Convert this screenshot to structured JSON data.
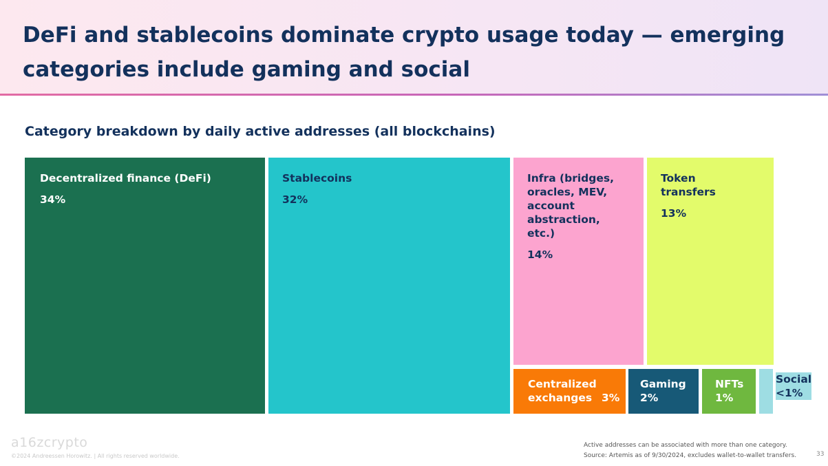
{
  "slide": {
    "title": "DeFi and stablecoins dominate crypto usage today — emerging categories include gaming and social",
    "footnote_line1": "Active addresses can be associated with more than one category.",
    "footnote_line2": "Source: Artemis as of 9/30/2024, excludes wallet-to-wallet transfers.",
    "logo": "a16zcrypto",
    "copyright": "©2024 Andreessen Horowitz. | All rights reserved worldwide.",
    "page_number": "33"
  },
  "chart_data": {
    "type": "treemap",
    "title": "Category breakdown by daily active addresses (all blockchains)",
    "unit": "% of daily active addresses",
    "items": [
      {
        "key": "defi",
        "label": "Decentralized finance (DeFi)",
        "value_label": "34%",
        "value": 34,
        "color": "#1b7050",
        "text_color": "#ffffff"
      },
      {
        "key": "stablecoins",
        "label": "Stablecoins",
        "value_label": "32%",
        "value": 32,
        "color": "#24c5cb",
        "text_color": "#13315c"
      },
      {
        "key": "infra",
        "label": "Infra (bridges, oracles, MEV, account abstraction, etc.)",
        "value_label": "14%",
        "value": 14,
        "color": "#fca4cf",
        "text_color": "#13315c"
      },
      {
        "key": "token_transfers",
        "label": "Token transfers",
        "value_label": "13%",
        "value": 13,
        "color": "#e3fb6b",
        "text_color": "#13315c"
      },
      {
        "key": "cex",
        "label": "Centralized exchanges",
        "value_label": "3%",
        "value": 3,
        "color": "#f97a07",
        "text_color": "#ffffff"
      },
      {
        "key": "gaming",
        "label": "Gaming",
        "value_label": "2%",
        "value": 2,
        "color": "#175977",
        "text_color": "#ffffff"
      },
      {
        "key": "nfts",
        "label": "NFTs",
        "value_label": "1%",
        "value": 1,
        "color": "#6fb83f",
        "text_color": "#ffffff"
      },
      {
        "key": "social",
        "label": "Social",
        "value_label": "<1%",
        "value": 0.5,
        "color": "#9edde3",
        "text_color": "#13315c"
      }
    ]
  }
}
